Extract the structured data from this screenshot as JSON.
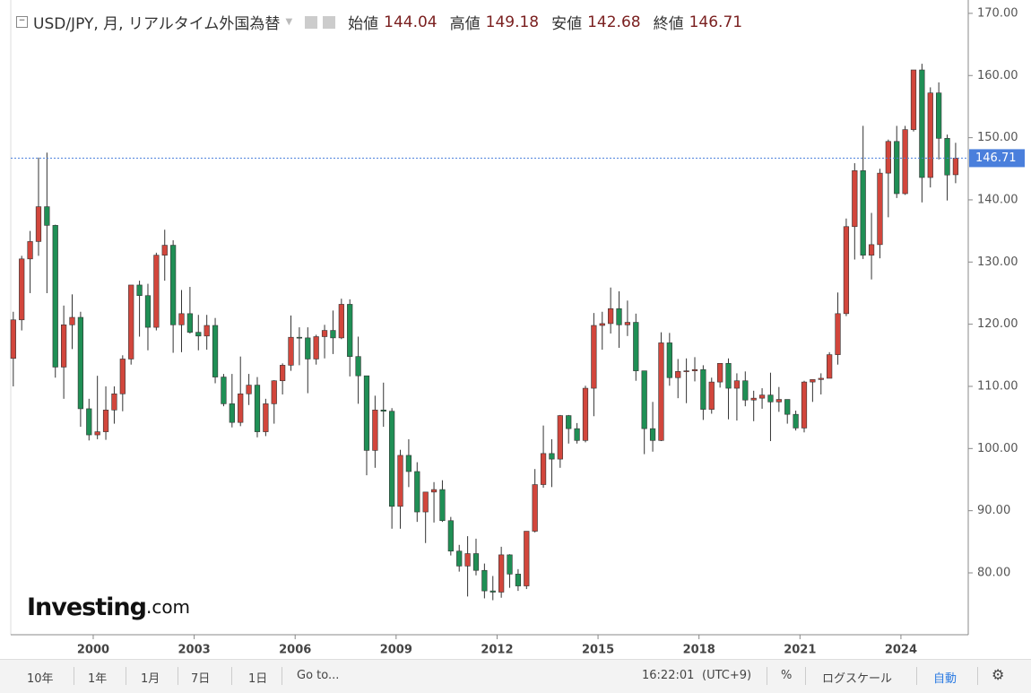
{
  "header": {
    "symbol": "USD/JPY, 月, リアルタイム外国為替",
    "open_label": "始値",
    "high_label": "高値",
    "low_label": "安値",
    "close_label": "終値"
  },
  "chart_data": {
    "type": "candlestick",
    "x": [
      1997.5,
      1997.75,
      1998,
      1998.25,
      1998.5,
      1998.75,
      1999,
      1999.25,
      1999.5,
      1999.75,
      2000,
      2000.25,
      2000.5,
      2000.75,
      2001,
      2001.25,
      2001.5,
      2001.75,
      2002,
      2002.25,
      2002.5,
      2002.75,
      2003,
      2003.25,
      2003.5,
      2003.75,
      2004,
      2004.25,
      2004.5,
      2004.75,
      2005,
      2005.25,
      2005.5,
      2005.75,
      2006,
      2006.25,
      2006.5,
      2006.75,
      2007,
      2007.25,
      2007.5,
      2007.75,
      2008,
      2008.25,
      2008.5,
      2008.75,
      2009,
      2009.25,
      2009.5,
      2009.75,
      2010,
      2010.25,
      2010.5,
      2010.75,
      2011,
      2011.25,
      2011.5,
      2011.75,
      2012,
      2012.25,
      2012.5,
      2012.75,
      2013,
      2013.25,
      2013.5,
      2013.75,
      2014,
      2014.25,
      2014.5,
      2014.75,
      2015,
      2015.25,
      2015.5,
      2015.75,
      2016,
      2016.25,
      2016.5,
      2016.75,
      2017,
      2017.25,
      2017.5,
      2017.75,
      2018,
      2018.25,
      2018.5,
      2018.75,
      2019,
      2019.25,
      2019.5,
      2019.75,
      2020,
      2020.25,
      2020.5,
      2020.75,
      2021,
      2021.25,
      2021.5,
      2021.75,
      2022,
      2022.25,
      2022.5,
      2022.75,
      2023,
      2023.25,
      2023.5,
      2023.75,
      2024,
      2024.25,
      2024.5,
      2024.75,
      2025,
      2025.25,
      2025.5
    ],
    "open": [
      114.5,
      120.7,
      130.5,
      133.3,
      138.9,
      135.9,
      113.1,
      119.9,
      121.1,
      106.4,
      102.2,
      102.7,
      106.2,
      108.8,
      114.4,
      126.3,
      124.6,
      119.5,
      131.1,
      132.7,
      119.9,
      121.7,
      118.7,
      118.1,
      119.8,
      111.5,
      107.2,
      104.2,
      108.8,
      110.2,
      102.7,
      107.2,
      110.9,
      113.4,
      117.9,
      117.8,
      114.4,
      118,
      119,
      117.8,
      123.2,
      114.8,
      111.7,
      99.7,
      106.2,
      106,
      90.7,
      98.9,
      96.3,
      89.8,
      93,
      93.4,
      88.4,
      83.5,
      81.1,
      83.1,
      80.4,
      77.1,
      76.9,
      82.9,
      79.8,
      77.9,
      86.7,
      94.2,
      99.2,
      98.3,
      105.3,
      103.2,
      101.3,
      109.7,
      119.8,
      120.1,
      122.5,
      119.9,
      120.3,
      112.5,
      103.2,
      101.3,
      117,
      111.4,
      112.4,
      112.5,
      112.7,
      106.3,
      110.7,
      113.7,
      109.7,
      110.9,
      107.8,
      108.1,
      108.6,
      107.5,
      107.9,
      105.5,
      103.3,
      110.7,
      111.1,
      111.3,
      115.1,
      121.7,
      135.7,
      144.7,
      131.1,
      132.8,
      144.3,
      149.4,
      141,
      151.3,
      160.9,
      143.6,
      157.2,
      149.9,
      144.04
    ],
    "high": [
      122,
      131,
      135,
      146.8,
      147.6,
      136,
      123,
      124.8,
      122,
      108,
      111.7,
      110,
      110,
      115,
      126,
      127,
      126.5,
      131.5,
      135.2,
      133.5,
      125.5,
      126,
      121.5,
      121.5,
      121,
      112,
      112,
      114.8,
      112,
      111.5,
      108,
      111,
      113.7,
      121.4,
      119.5,
      119.5,
      118.3,
      119.9,
      122.2,
      124.1,
      124,
      118,
      111.5,
      108.5,
      110.6,
      106.5,
      99.8,
      101.5,
      97.8,
      93,
      94.6,
      94.9,
      89,
      84.5,
      85.9,
      85.5,
      81.5,
      79.5,
      84.2,
      83,
      80.6,
      86.6,
      96.7,
      103.7,
      101.5,
      105.4,
      105.4,
      104.1,
      110.1,
      121.8,
      122,
      125.9,
      125.3,
      123.8,
      121.7,
      112,
      107.5,
      118.7,
      118.6,
      114.4,
      114.5,
      114.7,
      113.4,
      111.4,
      113.7,
      114.5,
      112.1,
      112.4,
      109.3,
      109.7,
      112.2,
      109.9,
      107.9,
      106.1,
      110.9,
      111.1,
      112.1,
      115.5,
      125.1,
      137,
      145.9,
      151.9,
      137.9,
      145,
      149.7,
      151.9,
      151.9,
      160.2,
      161.9,
      158.1,
      158.9,
      150.5,
      149.18
    ],
    "low": [
      110,
      119,
      125,
      131,
      125,
      111.4,
      108,
      116,
      103.5,
      101.3,
      101.5,
      101.4,
      104,
      106,
      113.5,
      118,
      115.8,
      119,
      127,
      115.4,
      115.5,
      118.5,
      115.8,
      115.9,
      110.5,
      106.8,
      103.4,
      103.6,
      107,
      101.8,
      102,
      104,
      108.7,
      112.5,
      113.4,
      108.9,
      113.5,
      114.5,
      115.2,
      117.6,
      111.6,
      107.2,
      95.7,
      96.9,
      103.5,
      87.1,
      87.1,
      93.8,
      88.2,
      84.8,
      88.1,
      88.2,
      82.8,
      80.2,
      76.2,
      79.6,
      75.9,
      75.6,
      76,
      77.6,
      77.1,
      77.4,
      86.5,
      93.7,
      93.8,
      96.9,
      100.8,
      100.8,
      101,
      105.2,
      115.9,
      118.5,
      116.2,
      118.1,
      110.9,
      99.1,
      99.5,
      101.2,
      110.1,
      108.1,
      107.3,
      110.8,
      104.6,
      105.6,
      109.8,
      104.7,
      104.5,
      106.8,
      104.4,
      106.4,
      101.2,
      105.9,
      104,
      102.9,
      102.6,
      107.5,
      108.7,
      111.5,
      113.5,
      121.3,
      130.4,
      130.5,
      127.2,
      130.6,
      137.2,
      140.3,
      140.8,
      151,
      139.6,
      142,
      146.5,
      139.9,
      142.68
    ],
    "close": [
      120.7,
      130.5,
      133.3,
      138.9,
      135.9,
      113.1,
      119.9,
      121.1,
      106.4,
      102.2,
      102.7,
      106.2,
      108.8,
      114.4,
      126.3,
      124.6,
      119.5,
      131.1,
      132.7,
      119.9,
      121.7,
      118.7,
      118.1,
      119.8,
      111.5,
      107.2,
      104.2,
      108.8,
      110.2,
      102.7,
      107.2,
      110.9,
      113.4,
      117.9,
      117.8,
      114.4,
      118,
      119,
      117.8,
      123.2,
      114.8,
      111.7,
      99.7,
      106.2,
      106,
      90.7,
      98.9,
      96.3,
      89.8,
      93,
      93.4,
      88.4,
      83.5,
      81.1,
      83.1,
      80.4,
      77.1,
      76.9,
      82.9,
      79.8,
      77.9,
      86.7,
      94.2,
      99.2,
      98.3,
      105.3,
      103.2,
      101.3,
      109.7,
      119.8,
      120.1,
      122.5,
      119.9,
      120.3,
      112.5,
      103.2,
      101.3,
      117,
      111.4,
      112.4,
      112.5,
      112.7,
      106.3,
      110.7,
      113.7,
      109.7,
      110.9,
      107.8,
      108.1,
      108.6,
      107.5,
      107.9,
      105.5,
      103.3,
      110.7,
      111.1,
      111.3,
      115.1,
      121.7,
      135.7,
      144.7,
      131.1,
      132.8,
      144.3,
      149.4,
      141,
      151.3,
      160.9,
      143.6,
      157.2,
      149.9,
      144,
      146.71
    ],
    "xlim": [
      1997.55,
      2026.0
    ],
    "ylim": [
      70.05,
      172.15
    ],
    "xticks": [
      2000,
      2003,
      2006,
      2009,
      2012,
      2015,
      2018,
      2021,
      2024
    ],
    "yticks": [
      {
        "value": 170,
        "label": "170.00"
      },
      {
        "value": 160,
        "label": "160.00"
      },
      {
        "value": 150,
        "label": "150.00"
      },
      {
        "value": 140,
        "label": "140.00"
      },
      {
        "value": 130,
        "label": "130.00"
      },
      {
        "value": 120,
        "label": "120.00"
      },
      {
        "value": 110,
        "label": "110.00"
      },
      {
        "value": 100,
        "label": "100.00"
      },
      {
        "value": 90,
        "label": "90.00"
      },
      {
        "value": 80,
        "label": "80.00"
      }
    ],
    "up_color": "#d2463c",
    "down_color": "#1f8f55",
    "last_price": 146.71,
    "last_price_color": "#4a7fdc",
    "logo": "Investing",
    "logo_suffix": ".com"
  },
  "toolbar": {
    "ranges": [
      "10年",
      "1年",
      "1月",
      "7日",
      "1日"
    ],
    "goto": "Go to...",
    "time": "16:22:01",
    "timezone": "(UTC+9)",
    "percent": "%",
    "log_scale": "ログスケール",
    "auto": "自動"
  }
}
